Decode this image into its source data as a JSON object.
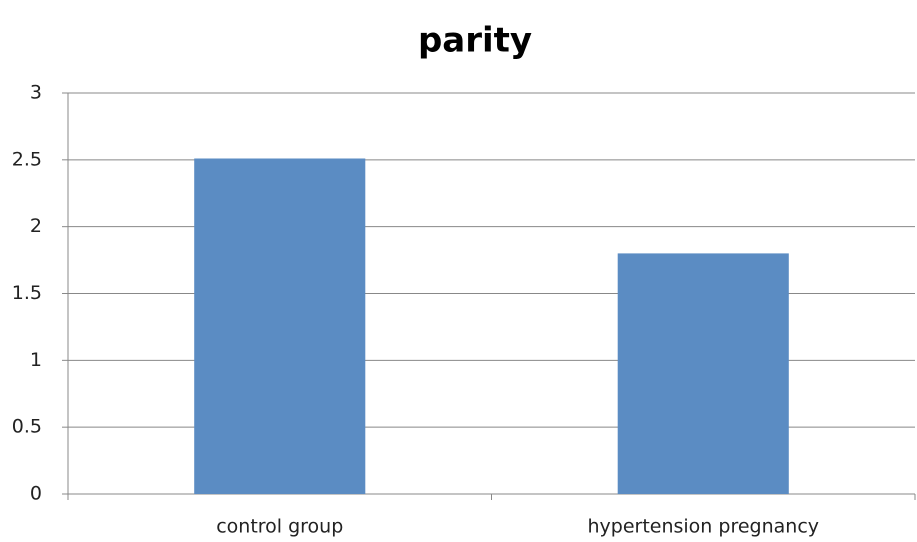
{
  "chart_data": {
    "type": "bar",
    "title": "parity",
    "categories": [
      "control group",
      "hypertension pregnancy"
    ],
    "values": [
      2.51,
      1.8
    ],
    "color": "#5b8cc3",
    "ylim": [
      0,
      3
    ],
    "yticks": [
      0,
      0.5,
      1,
      1.5,
      2,
      2.5,
      3
    ],
    "grid": true
  }
}
